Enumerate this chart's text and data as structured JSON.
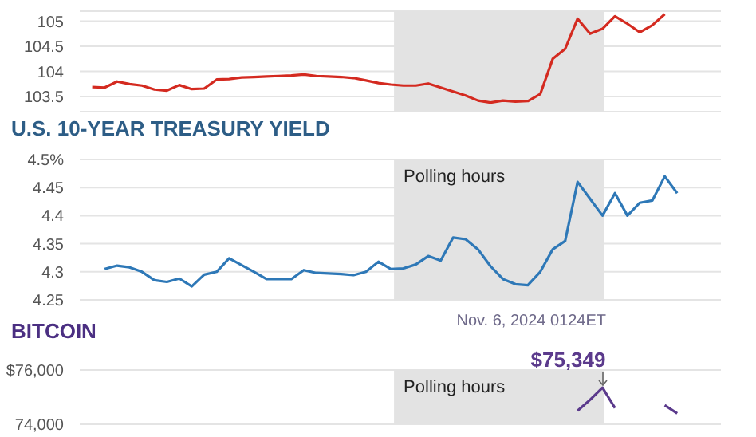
{
  "chart_data": [
    {
      "type": "line",
      "categories": [
        null,
        null,
        null,
        null,
        null,
        null,
        null,
        null,
        null,
        null,
        null,
        null,
        null,
        null,
        null,
        null,
        null,
        null,
        null,
        null,
        null,
        null,
        null,
        null,
        null,
        null,
        null,
        null,
        null,
        null,
        null,
        null,
        null,
        null,
        null,
        null,
        null,
        null,
        null,
        null,
        null,
        null,
        null,
        null,
        null,
        null,
        null,
        null,
        null,
        null,
        null,
        null
      ],
      "series": [
        {
          "color": "#d42a20",
          "values": [
            null,
            103.69,
            103.68,
            103.8,
            103.75,
            103.72,
            103.64,
            103.62,
            103.73,
            103.65,
            103.66,
            103.84,
            103.85,
            103.88,
            103.89,
            103.9,
            103.91,
            103.92,
            103.94,
            103.91,
            103.9,
            103.89,
            103.87,
            103.82,
            103.77,
            103.74,
            103.72,
            103.72,
            103.76,
            103.68,
            103.6,
            103.52,
            103.42,
            103.38,
            103.42,
            103.4,
            103.41,
            103.55,
            104.25,
            104.45,
            105.05,
            104.75,
            104.85,
            105.1,
            104.95,
            104.78,
            104.92,
            105.14,
            null,
            null,
            null,
            null
          ]
        }
      ],
      "ylim": [
        103.2,
        105.2
      ],
      "yticks": [
        103.5,
        104,
        104.5,
        105
      ],
      "grid": "y",
      "tick_labels": "y"
    },
    {
      "type": "line",
      "title": "U.S. 10-YEAR TREASURY YIELD",
      "categories": [
        null,
        null,
        null,
        null,
        null,
        null,
        null,
        null,
        null,
        null,
        null,
        null,
        null,
        null,
        null,
        null,
        null,
        null,
        null,
        null,
        null,
        null,
        null,
        null,
        null,
        null,
        null,
        null,
        null,
        null,
        null,
        null,
        null,
        null,
        null,
        null,
        null,
        null,
        null,
        null,
        null,
        null,
        null,
        null,
        null,
        null,
        null,
        null,
        null,
        null,
        null,
        null
      ],
      "series": [
        {
          "color": "#2e78b7",
          "values": [
            null,
            null,
            4.305,
            4.311,
            4.308,
            4.3,
            4.285,
            4.282,
            4.288,
            4.274,
            4.295,
            4.3,
            4.324,
            4.312,
            4.3,
            4.287,
            4.287,
            4.287,
            4.303,
            4.298,
            4.297,
            4.296,
            4.294,
            4.3,
            4.318,
            4.305,
            4.306,
            4.313,
            4.328,
            4.32,
            4.361,
            4.358,
            4.34,
            4.31,
            4.287,
            4.278,
            4.276,
            4.3,
            4.34,
            4.355,
            4.46,
            4.43,
            4.4,
            4.44,
            4.4,
            4.423,
            4.427,
            4.47,
            4.44,
            null,
            null,
            null
          ]
        }
      ],
      "ylim": [
        4.25,
        4.5
      ],
      "yticks": [
        4.25,
        4.3,
        4.35,
        4.4,
        4.45,
        {
          "value": 4.5,
          "label": "4.5%"
        }
      ],
      "grid": "y",
      "tick_labels": "y",
      "annotations": [
        "Polling hours"
      ]
    },
    {
      "type": "line",
      "title": "BITCOIN",
      "categories": [
        null,
        null,
        null,
        null,
        null,
        null,
        null,
        null,
        null,
        null,
        null,
        null,
        null,
        null,
        null,
        null,
        null,
        null,
        null,
        null,
        null,
        null,
        null,
        null,
        null,
        null,
        null,
        null,
        null,
        null,
        null,
        null,
        null,
        null,
        null,
        null,
        null,
        null,
        null,
        null,
        null,
        null,
        null,
        null,
        null,
        null,
        null,
        null,
        null,
        null,
        null,
        null
      ],
      "series": [
        {
          "color": "#5b3a8c",
          "values": [
            null,
            null,
            null,
            null,
            null,
            null,
            null,
            null,
            null,
            null,
            null,
            null,
            null,
            null,
            null,
            null,
            null,
            null,
            null,
            null,
            null,
            null,
            null,
            null,
            null,
            null,
            null,
            null,
            null,
            null,
            null,
            null,
            null,
            null,
            null,
            null,
            null,
            null,
            null,
            null,
            74500,
            74900,
            75349,
            74600,
            null,
            null,
            null,
            74700,
            74400,
            null,
            null,
            null
          ],
          "value_labels": [
            null,
            null,
            null,
            null,
            null,
            null,
            null,
            null,
            null,
            null,
            null,
            null,
            null,
            null,
            null,
            null,
            null,
            null,
            null,
            null,
            null,
            null,
            null,
            null,
            null,
            null,
            null,
            null,
            null,
            null,
            null,
            null,
            null,
            null,
            null,
            null,
            null,
            null,
            null,
            null,
            null,
            null,
            "$75,349",
            null,
            null,
            null,
            null,
            null,
            null,
            null,
            null,
            null
          ]
        }
      ],
      "ylim": [
        74000,
        76000
      ],
      "yticks": [
        {
          "value": 74000,
          "label": "74,000"
        },
        {
          "value": 76000,
          "label": "$76,000"
        }
      ],
      "grid": "y",
      "tick_labels": "y",
      "annotations": [
        "Polling hours",
        "Nov. 6, 2024 0124ET"
      ]
    }
  ]
}
